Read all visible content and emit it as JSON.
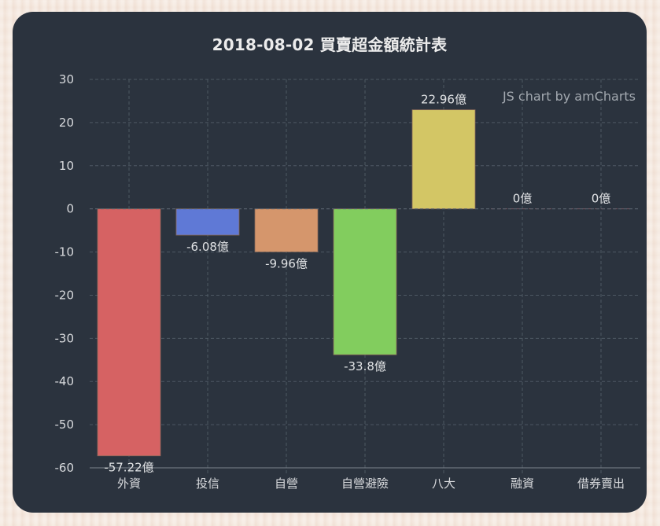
{
  "chart_data": {
    "type": "bar",
    "title": "2018-08-02 買賣超金額統計表",
    "credit": "JS chart by amCharts",
    "categories": [
      "外資",
      "投信",
      "自營",
      "自營避險",
      "八大",
      "融資",
      "借券賣出"
    ],
    "values": [
      -57.22,
      -6.08,
      -9.96,
      -33.8,
      22.96,
      0,
      0
    ],
    "value_labels": [
      "-57.22億",
      "-6.08億",
      "-9.96億",
      "-33.8億",
      "22.96億",
      "0億",
      "0億"
    ],
    "unit": "億",
    "colors": [
      "#d66263",
      "#5f79d6",
      "#d5966c",
      "#82cd5e",
      "#d3c665",
      "#d66263",
      "#d66263"
    ],
    "xlabel": "",
    "ylabel": "",
    "ylim": [
      -60,
      30
    ],
    "yticks": [
      30,
      20,
      10,
      0,
      -10,
      -20,
      -30,
      -40,
      -50,
      -60
    ],
    "grid": true,
    "legend": null
  },
  "theme": {
    "card_bg": "#2b333e",
    "grid_color": "#4e5863",
    "text_color": "#d8dadd"
  }
}
